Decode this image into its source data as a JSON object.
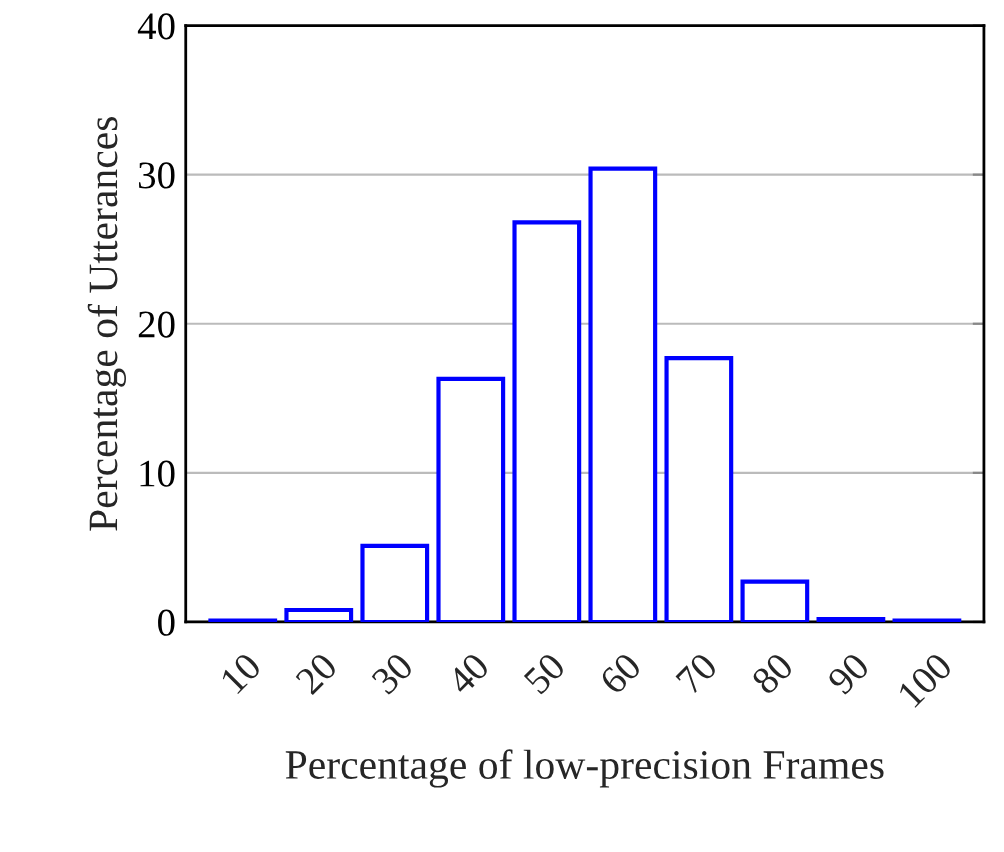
{
  "chart_data": {
    "type": "bar",
    "xlabel": "Percentage of low-precision Frames",
    "ylabel": "Percentage of Utterances",
    "categories": [
      "10",
      "20",
      "30",
      "40",
      "50",
      "60",
      "70",
      "80",
      "90",
      "100"
    ],
    "values": [
      0.1,
      0.8,
      5.1,
      16.3,
      26.8,
      30.4,
      17.7,
      2.7,
      0.2,
      0.1
    ],
    "color": "#0000ff",
    "ylim": [
      0,
      40
    ],
    "yticks": [
      0,
      10,
      20,
      30,
      40
    ],
    "grid": "y"
  }
}
